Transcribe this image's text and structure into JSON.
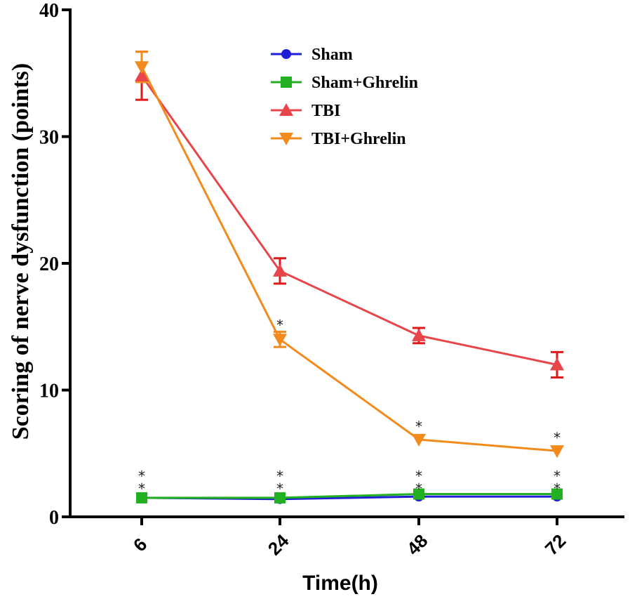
{
  "chart_data": {
    "type": "line",
    "title": "",
    "xlabel": "Time(h)",
    "ylabel": "Scoring of nerve dysfunction (points)",
    "categories": [
      "6",
      "24",
      "48",
      "72"
    ],
    "ylim": [
      0,
      40
    ],
    "yticks": [
      0,
      10,
      20,
      30,
      40
    ],
    "legend_position": "top-center",
    "series": [
      {
        "name": "Sham",
        "color": "#1f1fd6",
        "marker": "circle",
        "values": [
          1.5,
          1.4,
          1.6,
          1.6
        ],
        "errors": [
          0.1,
          0.1,
          0.1,
          0.1
        ]
      },
      {
        "name": "Sham+Ghrelin",
        "color": "#22b022",
        "marker": "square",
        "values": [
          1.5,
          1.5,
          1.8,
          1.8
        ],
        "errors": [
          0.1,
          0.1,
          0.1,
          0.1
        ]
      },
      {
        "name": "TBI",
        "color": "#e8454b",
        "marker": "triangle-up",
        "values": [
          34.8,
          19.4,
          14.3,
          12.0
        ],
        "errors": [
          1.9,
          1.0,
          0.6,
          1.0
        ],
        "error_color": "#e01a1a"
      },
      {
        "name": "TBI+Ghrelin",
        "color": "#f28a1c",
        "marker": "triangle-down",
        "values": [
          35.5,
          14.0,
          6.1,
          5.2
        ],
        "errors": [
          1.2,
          0.6,
          0.3,
          0.2
        ],
        "error_color": "#f28a1c"
      }
    ],
    "annotations": [
      {
        "category": "6",
        "text": "*",
        "y": 3.5
      },
      {
        "category": "6",
        "text": "*",
        "y": 2.5
      },
      {
        "category": "24",
        "text": "*",
        "y": 15.4
      },
      {
        "category": "24",
        "text": "*",
        "y": 3.5
      },
      {
        "category": "24",
        "text": "*",
        "y": 2.5
      },
      {
        "category": "48",
        "text": "*",
        "y": 7.4
      },
      {
        "category": "48",
        "text": "*",
        "y": 3.5
      },
      {
        "category": "48",
        "text": "*",
        "y": 2.5
      },
      {
        "category": "72",
        "text": "*",
        "y": 6.5
      },
      {
        "category": "72",
        "text": "*",
        "y": 3.5
      },
      {
        "category": "72",
        "text": "*",
        "y": 2.5
      }
    ]
  }
}
